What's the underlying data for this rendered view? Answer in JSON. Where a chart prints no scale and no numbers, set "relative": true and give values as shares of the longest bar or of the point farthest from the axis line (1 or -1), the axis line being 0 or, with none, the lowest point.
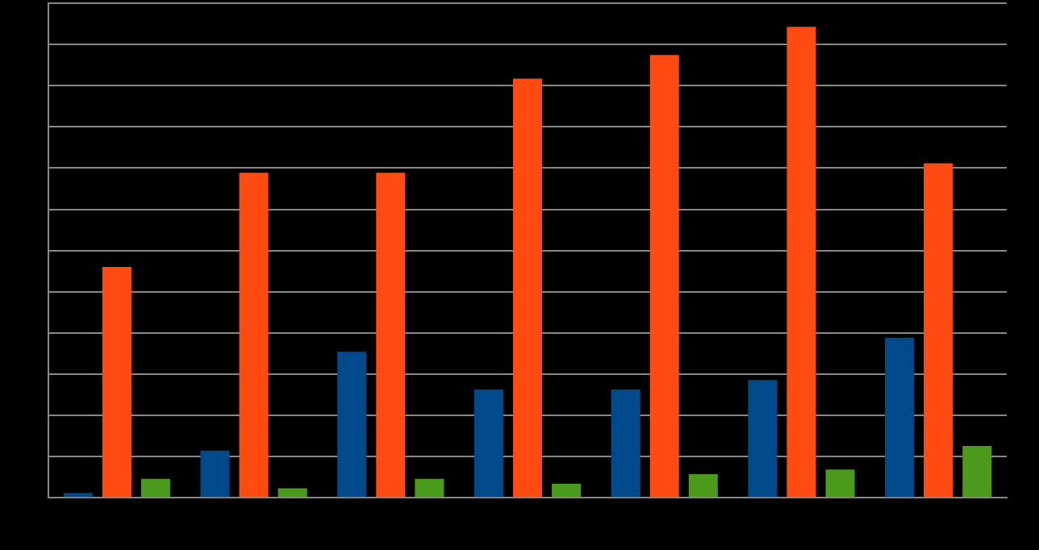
{
  "chart_data": {
    "type": "bar",
    "relative": true,
    "grid": "y",
    "categories": [
      null,
      null,
      null,
      null,
      null,
      null,
      null
    ],
    "series": [
      {
        "color": "#004a8c",
        "values": [
          0.01,
          0.1,
          0.31,
          0.23,
          0.23,
          0.25,
          0.34
        ]
      },
      {
        "color": "#ff4a12",
        "values": [
          0.49,
          0.69,
          0.69,
          0.89,
          0.94,
          1,
          0.71
        ]
      },
      {
        "color": "#4c9a1c",
        "values": [
          0.04,
          0.02,
          0.04,
          0.03,
          0.05,
          0.06,
          0.11
        ]
      }
    ]
  }
}
